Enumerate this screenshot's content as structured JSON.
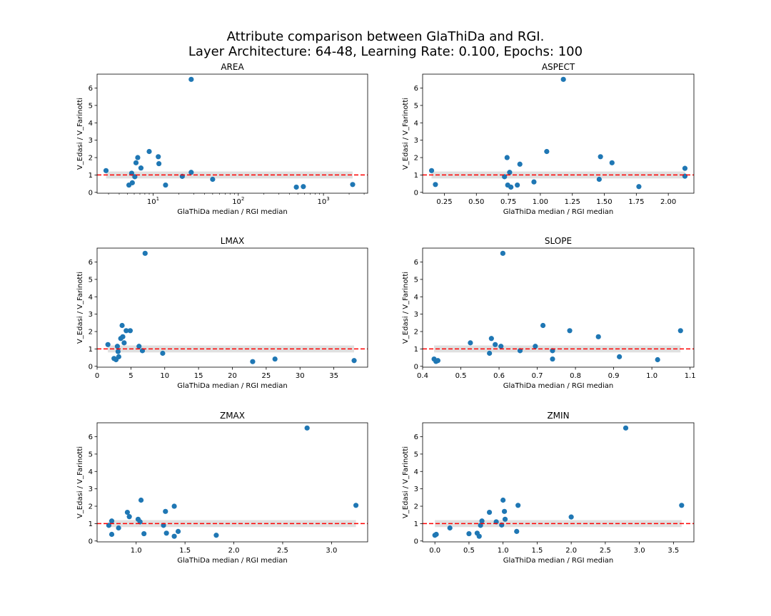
{
  "figure": {
    "title_line1": "Attribute comparison between GlaThiDa and RGI.",
    "title_line2": "Layer Architecture: 64-48, Learning Rate: 0.100, Epochs: 100"
  },
  "colors": {
    "points": "#1f77b4",
    "reference_line": "#ff0000",
    "band": "#e0e0e0",
    "axes": "#000000"
  },
  "chart_data": [
    {
      "type": "scatter",
      "title": "AREA",
      "xlabel": "GlaThiDa median / RGI median",
      "ylabel": "V_Edasi / V_Farinotti",
      "xscale": "log",
      "xlim": [
        2.2,
        3300
      ],
      "ylim": [
        -0.05,
        6.8
      ],
      "xticks": [
        10,
        100,
        1000
      ],
      "xticklabels": [
        "10",
        "10",
        "10"
      ],
      "xtick_exponents": [
        "1",
        "2",
        "3"
      ],
      "yticks": [
        0,
        1,
        2,
        3,
        4,
        5,
        6
      ],
      "reference_y": 1,
      "band": [
        0.8,
        1.2
      ],
      "points": [
        [
          2.8,
          1.25
        ],
        [
          5.2,
          0.42
        ],
        [
          5.6,
          1.1
        ],
        [
          5.7,
          0.55
        ],
        [
          6.1,
          0.9
        ],
        [
          6.3,
          1.7
        ],
        [
          6.6,
          2.0
        ],
        [
          7.2,
          1.4
        ],
        [
          9.0,
          2.35
        ],
        [
          11.5,
          2.05
        ],
        [
          11.7,
          1.65
        ],
        [
          14.0,
          0.42
        ],
        [
          22.0,
          0.92
        ],
        [
          28.0,
          1.15
        ],
        [
          28.0,
          6.5
        ],
        [
          50.0,
          0.75
        ],
        [
          480,
          0.3
        ],
        [
          580,
          0.33
        ],
        [
          2200,
          0.45
        ]
      ]
    },
    {
      "type": "scatter",
      "title": "ASPECT",
      "xlabel": "GlaThiDa median / RGI median",
      "ylabel": "V_Edasi / V_Farinotti",
      "xscale": "linear",
      "xlim": [
        0.08,
        2.2
      ],
      "ylim": [
        -0.05,
        6.8
      ],
      "xticks": [
        0.25,
        0.5,
        0.75,
        1.0,
        1.25,
        1.5,
        1.75,
        2.0
      ],
      "xticklabels": [
        "0.25",
        "0.50",
        "0.75",
        "1.00",
        "1.25",
        "1.50",
        "1.75",
        "2.00"
      ],
      "yticks": [
        0,
        1,
        2,
        3,
        4,
        5,
        6
      ],
      "reference_y": 1,
      "band": [
        0.8,
        1.2
      ],
      "points": [
        [
          0.15,
          1.25
        ],
        [
          0.18,
          0.45
        ],
        [
          0.72,
          0.9
        ],
        [
          0.74,
          2.0
        ],
        [
          0.745,
          0.42
        ],
        [
          0.76,
          1.15
        ],
        [
          0.77,
          0.3
        ],
        [
          0.82,
          0.42
        ],
        [
          0.84,
          1.62
        ],
        [
          0.95,
          0.6
        ],
        [
          1.05,
          2.35
        ],
        [
          1.18,
          6.5
        ],
        [
          1.46,
          0.75
        ],
        [
          1.47,
          2.05
        ],
        [
          1.56,
          1.7
        ],
        [
          1.77,
          0.33
        ],
        [
          2.13,
          1.38
        ],
        [
          2.13,
          0.93
        ]
      ]
    },
    {
      "type": "scatter",
      "title": "LMAX",
      "xlabel": "GlaThiDa median / RGI median",
      "ylabel": "V_Edasi / V_Farinotti",
      "xscale": "linear",
      "xlim": [
        0,
        40
      ],
      "ylim": [
        -0.05,
        6.8
      ],
      "xticks": [
        0,
        5,
        10,
        15,
        20,
        25,
        30,
        35
      ],
      "xticklabels": [
        "0",
        "5",
        "10",
        "15",
        "20",
        "25",
        "30",
        "35"
      ],
      "yticks": [
        0,
        1,
        2,
        3,
        4,
        5,
        6
      ],
      "reference_y": 1,
      "band": [
        0.8,
        1.2
      ],
      "points": [
        [
          1.6,
          1.25
        ],
        [
          2.5,
          0.45
        ],
        [
          2.8,
          0.38
        ],
        [
          3.0,
          1.15
        ],
        [
          3.1,
          0.85
        ],
        [
          3.2,
          0.55
        ],
        [
          3.5,
          1.6
        ],
        [
          3.7,
          2.35
        ],
        [
          3.8,
          1.7
        ],
        [
          4.0,
          1.35
        ],
        [
          4.3,
          2.05
        ],
        [
          4.9,
          2.05
        ],
        [
          6.2,
          1.15
        ],
        [
          6.7,
          0.9
        ],
        [
          7.1,
          6.5
        ],
        [
          9.7,
          0.75
        ],
        [
          23.0,
          0.27
        ],
        [
          26.3,
          0.42
        ],
        [
          38.0,
          0.33
        ]
      ]
    },
    {
      "type": "scatter",
      "title": "SLOPE",
      "xlabel": "GlaThiDa median / RGI median",
      "ylabel": "V_Edasi / V_Farinotti",
      "xscale": "linear",
      "xlim": [
        0.4,
        1.11
      ],
      "ylim": [
        -0.05,
        6.8
      ],
      "xticks": [
        0.4,
        0.5,
        0.6,
        0.7,
        0.8,
        0.9,
        1.0,
        1.1
      ],
      "xticklabels": [
        "0.4",
        "0.5",
        "0.6",
        "0.7",
        "0.8",
        "0.9",
        "1.0",
        "1.1"
      ],
      "yticks": [
        0,
        1,
        2,
        3,
        4,
        5,
        6
      ],
      "reference_y": 1,
      "band": [
        0.8,
        1.2
      ],
      "points": [
        [
          0.43,
          0.42
        ],
        [
          0.435,
          0.28
        ],
        [
          0.44,
          0.33
        ],
        [
          0.525,
          1.35
        ],
        [
          0.575,
          0.75
        ],
        [
          0.58,
          1.6
        ],
        [
          0.59,
          1.25
        ],
        [
          0.605,
          1.15
        ],
        [
          0.61,
          6.5
        ],
        [
          0.655,
          0.9
        ],
        [
          0.695,
          1.15
        ],
        [
          0.715,
          2.35
        ],
        [
          0.74,
          0.9
        ],
        [
          0.74,
          0.42
        ],
        [
          0.785,
          2.05
        ],
        [
          0.86,
          1.7
        ],
        [
          0.915,
          0.55
        ],
        [
          1.015,
          0.38
        ],
        [
          1.075,
          2.05
        ]
      ]
    },
    {
      "type": "scatter",
      "title": "ZMAX",
      "xlabel": "GlaThiDa median / RGI median",
      "ylabel": "V_Edasi / V_Farinotti",
      "xscale": "linear",
      "xlim": [
        0.6,
        3.37
      ],
      "ylim": [
        -0.05,
        6.8
      ],
      "xticks": [
        1.0,
        1.5,
        2.0,
        2.5,
        3.0
      ],
      "xticklabels": [
        "1.0",
        "1.5",
        "2.0",
        "2.5",
        "3.0"
      ],
      "yticks": [
        0,
        1,
        2,
        3,
        4,
        5,
        6
      ],
      "reference_y": 1,
      "band": [
        0.8,
        1.2
      ],
      "points": [
        [
          0.72,
          0.9
        ],
        [
          0.75,
          1.15
        ],
        [
          0.75,
          0.38
        ],
        [
          0.82,
          0.75
        ],
        [
          0.91,
          1.65
        ],
        [
          0.93,
          1.4
        ],
        [
          1.02,
          1.25
        ],
        [
          1.04,
          1.1
        ],
        [
          1.05,
          2.35
        ],
        [
          1.08,
          0.42
        ],
        [
          1.28,
          0.9
        ],
        [
          1.3,
          1.7
        ],
        [
          1.31,
          0.45
        ],
        [
          1.39,
          2.0
        ],
        [
          1.39,
          0.27
        ],
        [
          1.43,
          0.55
        ],
        [
          1.82,
          0.33
        ],
        [
          2.75,
          6.5
        ],
        [
          3.25,
          2.05
        ]
      ]
    },
    {
      "type": "scatter",
      "title": "ZMIN",
      "xlabel": "GlaThiDa median / RGI median",
      "ylabel": "V_Edasi / V_Farinotti",
      "xscale": "linear",
      "xlim": [
        -0.18,
        3.8
      ],
      "ylim": [
        -0.05,
        6.8
      ],
      "xticks": [
        0.0,
        0.5,
        1.0,
        1.5,
        2.0,
        2.5,
        3.0,
        3.5
      ],
      "xticklabels": [
        "0.0",
        "0.5",
        "1.0",
        "1.5",
        "2.0",
        "2.5",
        "3.0",
        "3.5"
      ],
      "yticks": [
        0,
        1,
        2,
        3,
        4,
        5,
        6
      ],
      "reference_y": 1,
      "band": [
        0.8,
        1.2
      ],
      "points": [
        [
          0.0,
          0.33
        ],
        [
          0.02,
          0.38
        ],
        [
          0.22,
          0.75
        ],
        [
          0.5,
          0.42
        ],
        [
          0.62,
          0.45
        ],
        [
          0.65,
          0.27
        ],
        [
          0.67,
          0.9
        ],
        [
          0.69,
          1.15
        ],
        [
          0.8,
          1.65
        ],
        [
          0.9,
          1.1
        ],
        [
          0.98,
          0.92
        ],
        [
          1.0,
          2.35
        ],
        [
          1.02,
          1.7
        ],
        [
          1.03,
          1.25
        ],
        [
          1.2,
          0.55
        ],
        [
          1.22,
          2.05
        ],
        [
          2.0,
          1.38
        ],
        [
          2.8,
          6.5
        ],
        [
          3.62,
          2.05
        ]
      ]
    }
  ]
}
